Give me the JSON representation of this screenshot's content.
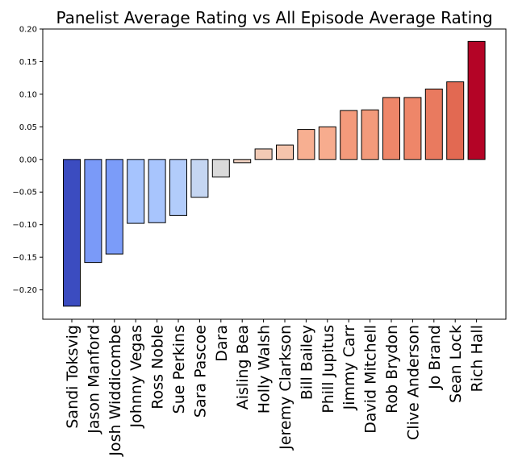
{
  "chart_data": {
    "type": "bar",
    "title": "Panelist Average Rating vs All Episode Average Rating",
    "xlabel": "",
    "ylabel": "",
    "ylim": [
      -0.245,
      0.2
    ],
    "yticks": [
      0.2,
      0.15,
      0.1,
      0.05,
      0.0,
      -0.05,
      -0.1,
      -0.15,
      -0.2
    ],
    "ytick_labels": [
      "0.20",
      "0.15",
      "0.10",
      "0.05",
      "0.00",
      "−0.05",
      "−0.10",
      "−0.15",
      "−0.20"
    ],
    "categories": [
      "Sandi Toksvig",
      "Jason Manford",
      "Josh Widdicombe",
      "Johnny Vegas",
      "Ross Noble",
      "Sue Perkins",
      "Sara Pascoe",
      "Dara",
      "Aisling Bea",
      "Holly Walsh",
      "Jeremy Clarkson",
      "Bill Bailey",
      "Phill Jupitus",
      "Jimmy Carr",
      "David Mitchell",
      "Rob Brydon",
      "Clive Anderson",
      "Jo Brand",
      "Sean Lock",
      "Rich Hall"
    ],
    "values": [
      -0.225,
      -0.158,
      -0.145,
      -0.098,
      -0.097,
      -0.086,
      -0.058,
      -0.027,
      -0.005,
      0.016,
      0.022,
      0.046,
      0.05,
      0.075,
      0.076,
      0.095,
      0.095,
      0.108,
      0.119,
      0.181
    ],
    "colors": [
      "#3b4cc0",
      "#7a9af8",
      "#7b9cf9",
      "#a6c4fe",
      "#a8c5fd",
      "#b2ccfb",
      "#c5d6f2",
      "#dadada",
      "#eed0c0",
      "#f2cab5",
      "#f5c4ac",
      "#f7af91",
      "#f7ac8e",
      "#f49a7b",
      "#f39a7b",
      "#ee8669",
      "#ee8669",
      "#e97a5f",
      "#e26952",
      "#b40426"
    ],
    "grid": false,
    "legend": "none"
  }
}
